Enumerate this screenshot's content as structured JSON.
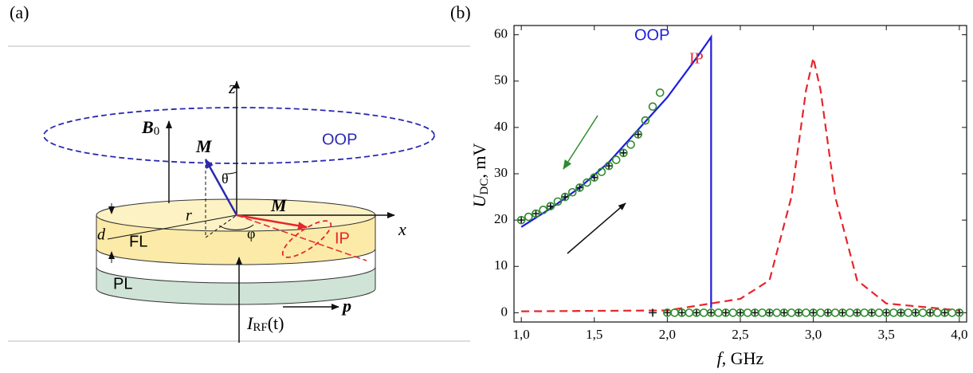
{
  "panel_labels": [
    "(a)",
    "(b)"
  ],
  "diagram": {
    "z": "z",
    "x": "x",
    "B0": {
      "main": "B",
      "sub": "0"
    },
    "M_out": "M",
    "M_in": "M",
    "theta": "θ",
    "phi": "φ",
    "r": "r",
    "d": "d",
    "OOP": "OOP",
    "IP": "IP",
    "FL": "FL",
    "PL": "PL",
    "p": "p",
    "IRF": {
      "main": "I",
      "sub": "RF",
      "rest": "(t)"
    }
  },
  "chart_data": {
    "type": "line",
    "xlabel": {
      "main": "f",
      "rest": ", GHz"
    },
    "ylabel": {
      "main": "U",
      "sub": "DC",
      "rest": ", mV"
    },
    "annotations": [
      "OOP",
      "IP"
    ],
    "xlim": [
      0.95,
      4.05
    ],
    "ylim": [
      -2,
      62
    ],
    "xticks": [
      {
        "value": 1,
        "label": "1,0"
      },
      {
        "value": 1.5,
        "label": "1,5"
      },
      {
        "value": 2,
        "label": "2,0"
      },
      {
        "value": 2.5,
        "label": "2,5"
      },
      {
        "value": 3,
        "label": "3,0"
      },
      {
        "value": 3.5,
        "label": "3,5"
      },
      {
        "value": 4,
        "label": "4,0"
      }
    ],
    "yticks": [
      0,
      10,
      20,
      30,
      40,
      50,
      60
    ],
    "series": [
      {
        "color": "#1c1ce0",
        "line": "solid",
        "marker": null,
        "x": [
          1.0,
          1.2,
          1.4,
          1.6,
          1.8,
          2.0,
          2.2,
          2.3,
          2.3
        ],
        "values": [
          18.5,
          22.5,
          27,
          32.5,
          39.5,
          46.5,
          55,
          59.5,
          1
        ]
      },
      {
        "color": "#e5262b",
        "line": "dashed",
        "marker": null,
        "x": [
          1.0,
          2.0,
          2.5,
          2.7,
          2.85,
          2.95,
          3.0,
          3.05,
          3.15,
          3.3,
          3.5,
          4.0
        ],
        "values": [
          0.3,
          0.5,
          3,
          7,
          25,
          48,
          55,
          48,
          25,
          7,
          2,
          0.5
        ]
      },
      {
        "color": "#111111",
        "line": null,
        "marker": "cross",
        "x": [
          1.0,
          1.1,
          1.2,
          1.3,
          1.4,
          1.5,
          1.6,
          1.7,
          1.8,
          1.9,
          2.0,
          2.1,
          2.2,
          2.3,
          2.4,
          2.5,
          2.6,
          2.7,
          2.8,
          2.9,
          3.0,
          3.1,
          3.2,
          3.3,
          3.4,
          3.5,
          3.6,
          3.7,
          3.8,
          3.9,
          4.0
        ],
        "values": [
          20,
          21.4,
          23,
          25,
          27,
          29.2,
          31.7,
          34.5,
          38.5,
          0,
          0,
          0,
          0,
          0,
          0,
          0,
          0,
          0,
          0,
          0,
          0,
          0,
          0,
          0,
          0,
          0,
          0,
          0,
          0,
          0,
          0
        ]
      },
      {
        "color": "#2e8b2e",
        "line": null,
        "marker": "circle",
        "x": [
          1.0,
          1.05,
          1.1,
          1.15,
          1.2,
          1.25,
          1.3,
          1.35,
          1.4,
          1.45,
          1.5,
          1.55,
          1.6,
          1.65,
          1.7,
          1.75,
          1.8,
          1.85,
          1.9,
          1.95,
          2.0,
          2.05,
          2.1,
          2.15,
          2.2,
          2.25,
          2.3,
          2.35,
          2.4,
          2.45,
          2.5,
          2.55,
          2.6,
          2.65,
          2.7,
          2.75,
          2.8,
          2.85,
          2.9,
          2.95,
          3.0,
          3.05,
          3.1,
          3.15,
          3.2,
          3.25,
          3.3,
          3.35,
          3.4,
          3.45,
          3.5,
          3.55,
          3.6,
          3.65,
          3.7,
          3.75,
          3.8,
          3.85,
          3.9,
          3.95,
          4.0
        ],
        "values": [
          20,
          20.7,
          21.4,
          22.2,
          23,
          24,
          25,
          26,
          27,
          28.1,
          29.2,
          30.4,
          31.7,
          33,
          34.5,
          36.3,
          38.5,
          41.5,
          44.5,
          47.5,
          0,
          0,
          0,
          0,
          0,
          0,
          0,
          0,
          0,
          0,
          0,
          0,
          0,
          0,
          0,
          0,
          0,
          0,
          0,
          0,
          0,
          0,
          0,
          0,
          0,
          0,
          0,
          0,
          0,
          0,
          0,
          0,
          0,
          0,
          0,
          0,
          0,
          0,
          0,
          0,
          0
        ]
      }
    ]
  }
}
